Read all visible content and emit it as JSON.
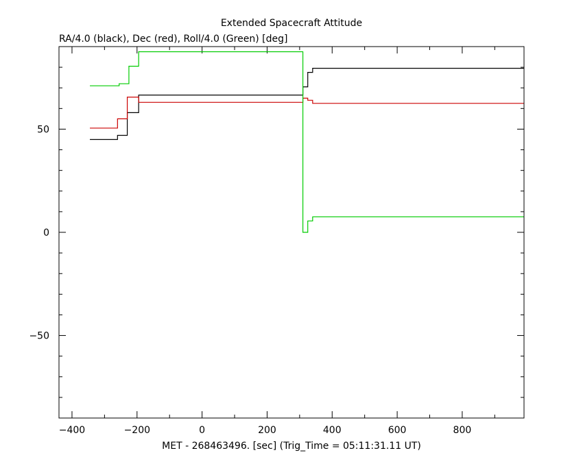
{
  "chart_data": {
    "type": "line",
    "title": "Extended Spacecraft Attitude",
    "subtitle": "RA/4.0 (black), Dec (red), Roll/4.0 (Green) [deg]",
    "xlabel": "MET - 268463496. [sec] (Trig_Time = 05:11:31.11 UT)",
    "ylabel": "",
    "xlim": [
      -440,
      990
    ],
    "ylim": [
      -90,
      90
    ],
    "x_ticks": [
      -400,
      -200,
      0,
      200,
      400,
      600,
      800
    ],
    "x_tick_labels": [
      "−400",
      "−200",
      "0",
      "200",
      "400",
      "600",
      "800"
    ],
    "x_minor_step": 100,
    "y_ticks": [
      -50,
      0,
      50
    ],
    "y_tick_labels": [
      "−50",
      "0",
      "50"
    ],
    "y_minor_step": 10,
    "grid": false,
    "step": true,
    "series": [
      {
        "color": "#000000",
        "x": [
          -345,
          -260,
          -230,
          -195,
          310,
          325,
          340,
          990
        ],
        "y": [
          45,
          47,
          58,
          66.5,
          70.5,
          77.5,
          79.5,
          79.5
        ]
      },
      {
        "color": "#cc0000",
        "x": [
          -345,
          -260,
          -230,
          -195,
          310,
          325,
          340,
          990
        ],
        "y": [
          50.5,
          55,
          65.5,
          63,
          65,
          64,
          62.5,
          62.5
        ]
      },
      {
        "color": "#00cc00",
        "x": [
          -345,
          -255,
          -225,
          -195,
          310,
          325,
          340,
          990
        ],
        "y": [
          71,
          72,
          80.5,
          87.5,
          0,
          5.5,
          7.5,
          7.5
        ]
      }
    ]
  }
}
